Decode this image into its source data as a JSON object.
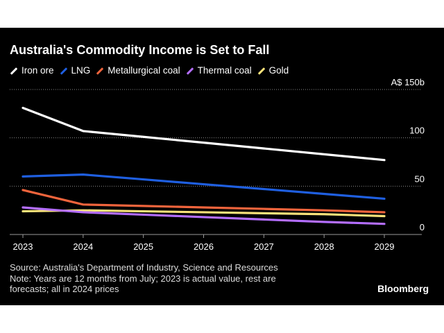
{
  "title": "Australia's Commodity Income is Set to Fall",
  "source": "Source: Australia's Department of Industry, Science and Resources",
  "note_line1": "Note: Years are 12 months from July; 2023 is actual value, rest are",
  "note_line2": "forecasts; all in 2024 prices",
  "brand": "Bloomberg",
  "colors": {
    "background": "#000000",
    "grid": "#8a8a8a",
    "axis": "#9a9a9a"
  },
  "chart_data": {
    "type": "line",
    "title": "Australia's Commodity Income is Set to Fall",
    "xlabel": "",
    "ylabel": "",
    "y_unit_label": "A$ 150b",
    "x": [
      2023,
      2024,
      2025,
      2026,
      2027,
      2028,
      2029
    ],
    "ylim": [
      0,
      150
    ],
    "y_ticks": [
      0,
      50,
      100,
      150
    ],
    "y_tick_labels": [
      "0",
      "50",
      "100",
      "A$ 150b"
    ],
    "grid": true,
    "legend_position": "top-left",
    "series": [
      {
        "name": "Iron ore",
        "color": "#ffffff",
        "values": [
          131,
          107,
          101,
          95,
          89,
          83,
          77
        ]
      },
      {
        "name": "LNG",
        "color": "#1f5fe0",
        "values": [
          60,
          62,
          57,
          52,
          47,
          42,
          37
        ]
      },
      {
        "name": "Metallurgical coal",
        "color": "#f0643c",
        "values": [
          46,
          31,
          29.5,
          28,
          26.5,
          25,
          23
        ]
      },
      {
        "name": "Thermal coal",
        "color": "#b46eff",
        "values": [
          28,
          23,
          20.5,
          18,
          15.5,
          13,
          11
        ]
      },
      {
        "name": "Gold",
        "color": "#f7e27a",
        "values": [
          24,
          25,
          24,
          23,
          22,
          21,
          19
        ]
      }
    ]
  }
}
